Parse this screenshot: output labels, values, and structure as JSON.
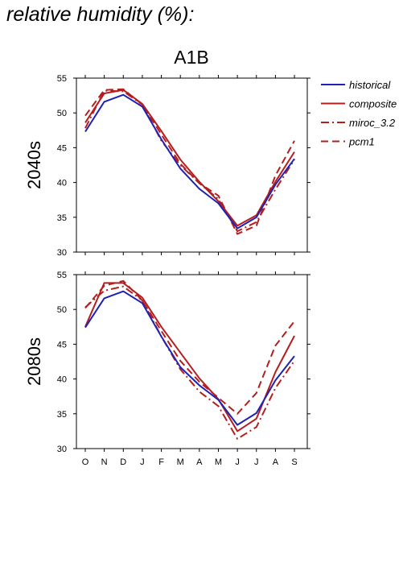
{
  "header": {
    "title": "relative humidity (%):",
    "scenario": "A1B"
  },
  "chart_data": {
    "type": "line",
    "categories": [
      "O",
      "N",
      "D",
      "J",
      "F",
      "M",
      "A",
      "M",
      "J",
      "J",
      "A",
      "S"
    ],
    "ylim": [
      30,
      55
    ],
    "yticks": [
      30,
      35,
      40,
      45,
      50,
      55
    ],
    "legend_position": "right",
    "series_styles": [
      {
        "name": "historical",
        "color": "#1f22b4",
        "dash": ""
      },
      {
        "name": "composite",
        "color": "#b41e1e",
        "dash": ""
      },
      {
        "name": "miroc_3.2",
        "color": "#b41e1e",
        "dash": "10,4,2,4"
      },
      {
        "name": "pcm1",
        "color": "#b41e1e",
        "dash": "9,5"
      }
    ],
    "panels": [
      {
        "label": "2040s",
        "series": [
          {
            "name": "historical",
            "values": [
              47.3,
              51.6,
              52.6,
              50.9,
              46.2,
              42.0,
              39.1,
              37.0,
              33.4,
              35.0,
              39.7,
              43.4
            ]
          },
          {
            "name": "composite",
            "values": [
              48.6,
              52.8,
              53.3,
              51.3,
              47.4,
              43.3,
              40.1,
              37.3,
              33.8,
              35.3,
              40.1,
              44.4
            ]
          },
          {
            "name": "miroc_3.2",
            "values": [
              47.8,
              53.2,
              53.1,
              51.2,
              46.0,
              42.5,
              39.9,
              37.6,
              33.0,
              34.3,
              39.0,
              43.3
            ]
          },
          {
            "name": "pcm1",
            "values": [
              49.6,
              53.3,
              53.4,
              51.2,
              46.9,
              42.7,
              39.9,
              38.1,
              32.6,
              33.8,
              41.0,
              46.0
            ]
          }
        ]
      },
      {
        "label": "2080s",
        "series": [
          {
            "name": "historical",
            "values": [
              47.4,
              51.6,
              52.6,
              50.9,
              46.1,
              41.7,
              39.1,
              37.0,
              33.4,
              35.1,
              39.8,
              43.3
            ]
          },
          {
            "name": "composite",
            "values": [
              47.5,
              53.8,
              53.8,
              51.7,
              47.5,
              43.8,
              40.1,
              37.1,
              32.5,
              34.3,
              41.0,
              46.2
            ]
          },
          {
            "name": "miroc_3.2",
            "values": [
              50.3,
              52.7,
              53.3,
              51.3,
              46.1,
              41.4,
              38.2,
              36.1,
              31.4,
              33.1,
              38.7,
              42.6
            ]
          },
          {
            "name": "pcm1",
            "values": [
              50.2,
              53.4,
              54.1,
              51.3,
              46.9,
              42.6,
              39.6,
              37.3,
              35.0,
              38.0,
              44.8,
              48.3
            ]
          }
        ]
      }
    ]
  }
}
